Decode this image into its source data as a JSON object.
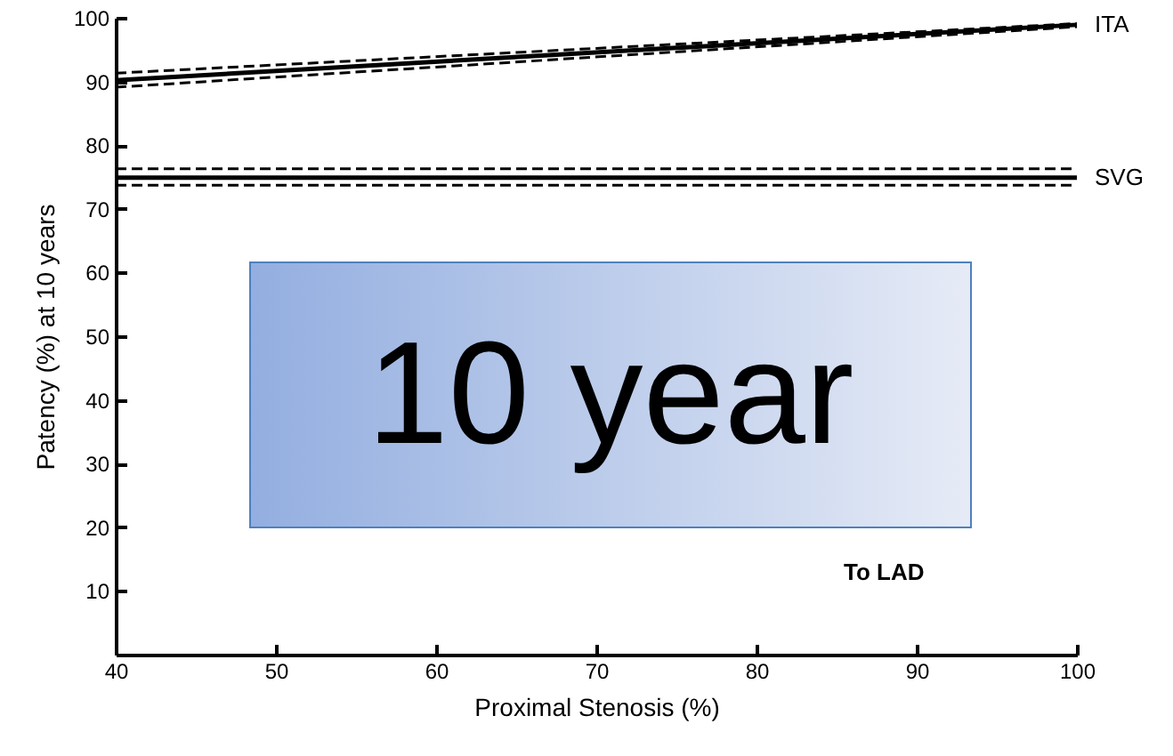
{
  "chart_data": {
    "type": "line",
    "xlabel": "Proximal Stenosis (%)",
    "ylabel": "Patency (%) at 10 years",
    "x": [
      40,
      100
    ],
    "xlim": [
      40,
      100
    ],
    "xticks": [
      40,
      50,
      60,
      70,
      80,
      90,
      100
    ],
    "ylim": [
      0,
      100
    ],
    "yticks": [
      10,
      20,
      30,
      40,
      50,
      60,
      70,
      80,
      90,
      100
    ],
    "grid": false,
    "marker": "none",
    "line_style": "solid",
    "series": [
      {
        "name": "ITA",
        "color": "#000000",
        "values": [
          90.2,
          98.9
        ]
      },
      {
        "color": "#000000",
        "values": [
          91.3,
          99.1
        ],
        "line_style": "dashed"
      },
      {
        "color": "#000000",
        "values": [
          89.1,
          98.6
        ],
        "line_style": "dashed"
      },
      {
        "name": "SVG",
        "color": "#000000",
        "values": [
          74.9,
          74.9
        ]
      },
      {
        "color": "#000000",
        "values": [
          76.3,
          76.3
        ],
        "line_style": "dashed"
      },
      {
        "color": "#000000",
        "values": [
          73.7,
          73.7
        ],
        "line_style": "dashed"
      }
    ],
    "annotations": [
      "10 year",
      "To LAD"
    ]
  }
}
